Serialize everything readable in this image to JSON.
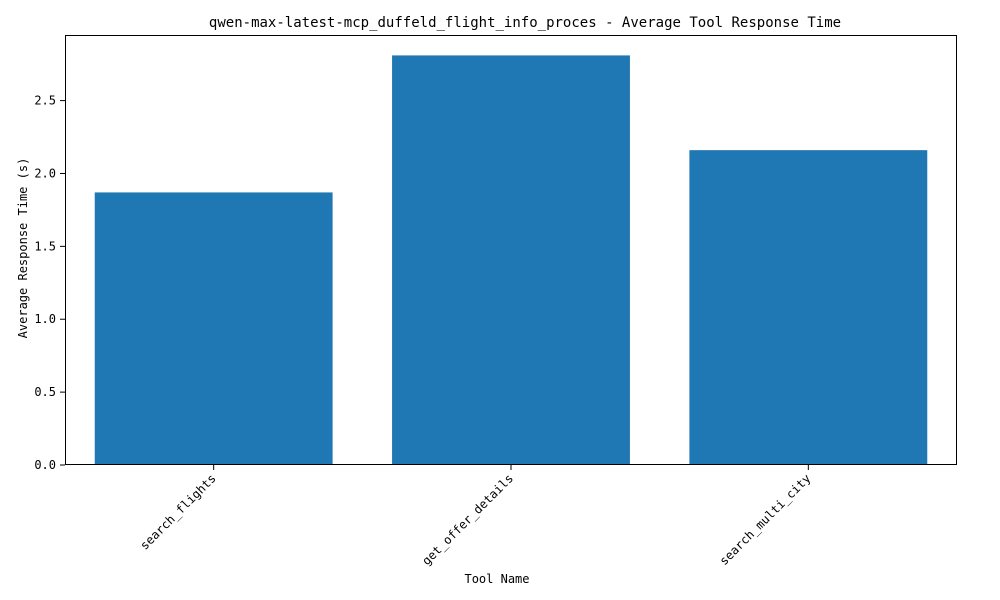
{
  "chart_data": {
    "type": "bar",
    "title": "qwen-max-latest-mcp_duffeld_flight_info_proces - Average Tool Response Time",
    "xlabel": "Tool Name",
    "ylabel": "Average Response Time (s)",
    "categories": [
      "search_flights",
      "get_offer_details",
      "search_multi_city"
    ],
    "values": [
      1.87,
      2.81,
      2.16
    ],
    "ylim": [
      0,
      2.95
    ],
    "yticks": [
      0.0,
      0.5,
      1.0,
      1.5,
      2.0,
      2.5
    ],
    "ytick_labels": [
      "0.0",
      "0.5",
      "1.0",
      "1.5",
      "2.0",
      "2.5"
    ],
    "bar_color": "#1f77b4",
    "grid": false,
    "legend": "none"
  }
}
